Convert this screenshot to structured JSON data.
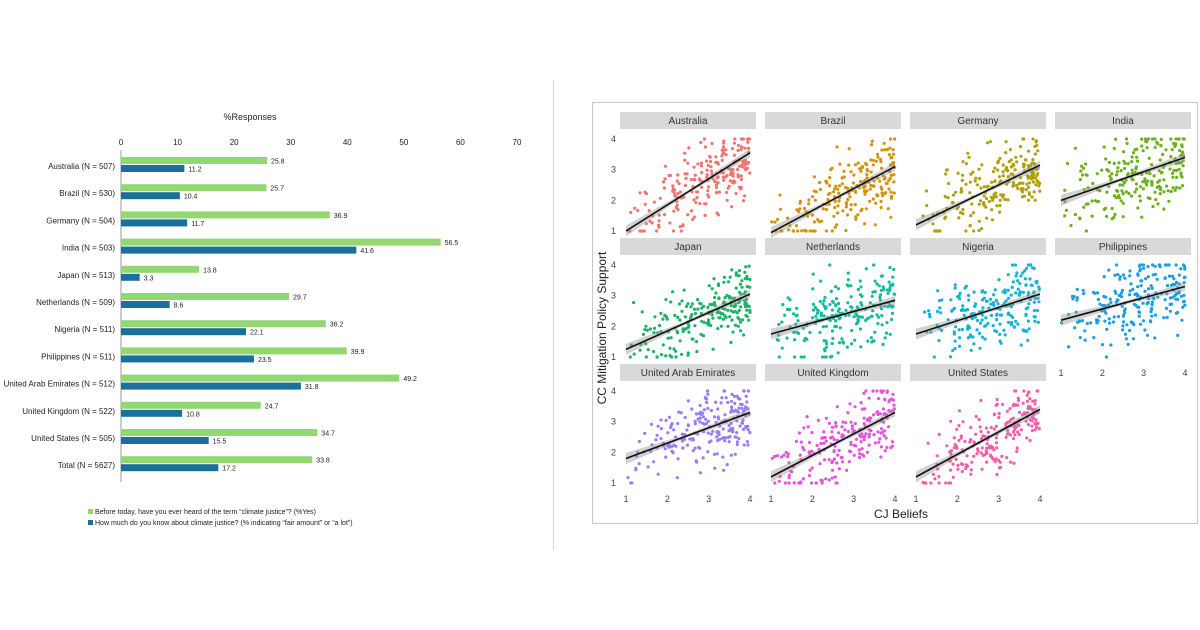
{
  "chart_data": [
    {
      "type": "bar",
      "orientation": "horizontal",
      "title": "%Responses",
      "xlim": [
        0,
        70
      ],
      "xticks": [
        0,
        10,
        20,
        30,
        40,
        50,
        60,
        70
      ],
      "categories": [
        "Australia (N = 507)",
        "Brazil (N = 530)",
        "Germany (N = 504)",
        "India (N = 503)",
        "Japan (N = 513)",
        "Netherlands (N = 509)",
        "Nigeria (N = 511)",
        "Philippines (N = 511)",
        "United Arab Emirates (N = 512)",
        "United Kingdom (N = 522)",
        "United States (N = 505)",
        "Total (N = 5627)"
      ],
      "series": [
        {
          "name": "Before today, have you ever heard of the term “climate justice”? (%Yes)",
          "color": "#92d76f",
          "values": [
            25.8,
            25.7,
            36.9,
            56.5,
            13.8,
            29.7,
            36.2,
            39.9,
            49.2,
            24.7,
            34.7,
            33.8
          ]
        },
        {
          "name": "How much do you know about climate justice? (% indicating “fair amount” or “a lot”)",
          "color": "#1b6f9c",
          "values": [
            11.2,
            10.4,
            11.7,
            41.6,
            3.3,
            8.6,
            22.1,
            23.5,
            31.8,
            10.8,
            15.5,
            17.2
          ]
        }
      ],
      "legend": "bottom-left"
    },
    {
      "type": "scatter",
      "faceted": true,
      "xlabel": "CJ Beliefs",
      "ylabel": "CC Mitigation Policy Support",
      "xlim": [
        1,
        4
      ],
      "ylim": [
        1,
        4
      ],
      "xticks": [
        1,
        2,
        3,
        4
      ],
      "yticks": [
        1,
        2,
        3,
        4
      ],
      "facets": [
        {
          "name": "Australia",
          "color": "#f0756e",
          "fit": [
            [
              1,
              1.0
            ],
            [
              4,
              3.55
            ]
          ]
        },
        {
          "name": "Brazil",
          "color": "#d3930c",
          "fit": [
            [
              1,
              0.95
            ],
            [
              4,
              3.1
            ]
          ]
        },
        {
          "name": "Germany",
          "color": "#b0a010",
          "fit": [
            [
              1,
              1.2
            ],
            [
              4,
              3.15
            ]
          ]
        },
        {
          "name": "India",
          "color": "#6bb11c",
          "fit": [
            [
              1,
              2.0
            ],
            [
              4,
              3.4
            ]
          ]
        },
        {
          "name": "Japan",
          "color": "#1fb267",
          "fit": [
            [
              1,
              1.25
            ],
            [
              4,
              3.05
            ]
          ]
        },
        {
          "name": "Netherlands",
          "color": "#16b9a0",
          "fit": [
            [
              1,
              1.75
            ],
            [
              4,
              2.85
            ]
          ]
        },
        {
          "name": "Nigeria",
          "color": "#14b2d8",
          "fit": [
            [
              1,
              1.75
            ],
            [
              4,
              3.05
            ]
          ]
        },
        {
          "name": "Philippines",
          "color": "#1a9fe3",
          "fit": [
            [
              1,
              2.2
            ],
            [
              4,
              3.3
            ]
          ]
        },
        {
          "name": "United Arab Emirates",
          "color": "#9a7df5",
          "fit": [
            [
              1,
              1.8
            ],
            [
              4,
              3.3
            ]
          ]
        },
        {
          "name": "United Kingdom",
          "color": "#e255de",
          "fit": [
            [
              1,
              1.2
            ],
            [
              4,
              3.3
            ]
          ]
        },
        {
          "name": "United States",
          "color": "#f05fae",
          "fit": [
            [
              1,
              1.2
            ],
            [
              4,
              3.4
            ]
          ]
        }
      ]
    }
  ]
}
